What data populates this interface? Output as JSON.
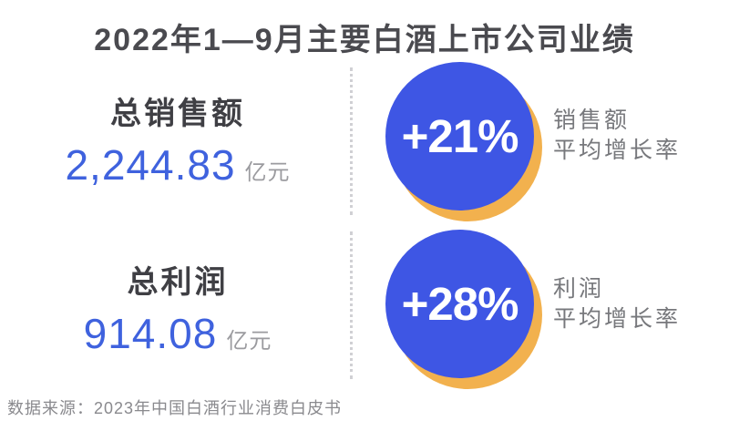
{
  "title": "2022年1—9月主要白酒上市公司业绩",
  "stats": [
    {
      "label": "总销售额",
      "value": "2,244.83",
      "unit": "亿元"
    },
    {
      "label": "总利润",
      "value": "914.08",
      "unit": "亿元"
    }
  ],
  "growth": [
    {
      "value": "+21%",
      "desc_line1": "销售额",
      "desc_line2": "平均增长率"
    },
    {
      "value": "+28%",
      "desc_line1": "利润",
      "desc_line2": "平均增长率"
    }
  ],
  "source": "数据来源：2023年中国白酒行业消费白皮书",
  "colors": {
    "accent_blue_number": "#3f62de",
    "circle_blue": "#3e56e4",
    "circle_shadow_yellow": "#f2b14e",
    "dark_text": "#4a4a4f",
    "gray_label": "#77787c",
    "gray_unit": "#9b9b9f",
    "source_gray": "#8a8a8e",
    "divider_gray": "#d0d0d4"
  },
  "chart_data": {
    "type": "table",
    "title": "2022年1—9月主要白酒上市公司业绩",
    "metrics": [
      {
        "name": "总销售额",
        "value": 2244.83,
        "unit": "亿元",
        "avg_growth_rate_pct": 21,
        "growth_label": "销售额平均增长率"
      },
      {
        "name": "总利润",
        "value": 914.08,
        "unit": "亿元",
        "avg_growth_rate_pct": 28,
        "growth_label": "利润平均增长率"
      }
    ],
    "source": "数据来源：2023年中国白酒行业消费白皮书"
  }
}
